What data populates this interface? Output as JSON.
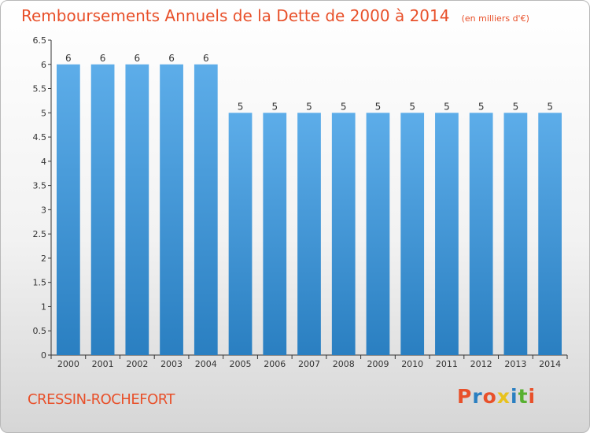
{
  "header": {
    "title": "Remboursements Annuels de la Dette de 2000 à 2014",
    "unit": "(en milliers d'€)"
  },
  "footer": {
    "commune": "CRESSIN-ROCHEFORT",
    "brand": "Proxiti"
  },
  "colors": {
    "title": "#e8502a",
    "bar_top": "#5dade9",
    "bar_bottom": "#2a7fc1",
    "axis": "#333333",
    "brand_letters": [
      "#e8502a",
      "#2a7fc1",
      "#e8502a",
      "#e8c21e",
      "#2a7fc1",
      "#58b031",
      "#e8502a"
    ]
  },
  "chart_data": {
    "type": "bar",
    "title": "Remboursements Annuels de la Dette de 2000 à 2014",
    "subtitle": "(en milliers d'€)",
    "xlabel": "",
    "ylabel": "",
    "categories": [
      "2000",
      "2001",
      "2002",
      "2003",
      "2004",
      "2005",
      "2006",
      "2007",
      "2008",
      "2009",
      "2010",
      "2011",
      "2012",
      "2013",
      "2014"
    ],
    "values": [
      6,
      6,
      6,
      6,
      6,
      5,
      5,
      5,
      5,
      5,
      5,
      5,
      5,
      5,
      5
    ],
    "data_labels": [
      "6",
      "6",
      "6",
      "6",
      "6",
      "5",
      "5",
      "5",
      "5",
      "5",
      "5",
      "5",
      "5",
      "5",
      "5"
    ],
    "ylim": [
      0,
      6.5
    ],
    "yticks": [
      0,
      0.5,
      1,
      1.5,
      2,
      2.5,
      3,
      3.5,
      4,
      4.5,
      5,
      5.5,
      6,
      6.5
    ],
    "ytick_labels": [
      "0",
      "0.5",
      "1",
      "1.5",
      "2",
      "2.5",
      "3",
      "3.5",
      "4",
      "4.5",
      "5",
      "5.5",
      "6",
      "6.5"
    ],
    "grid": false,
    "legend": "none"
  }
}
